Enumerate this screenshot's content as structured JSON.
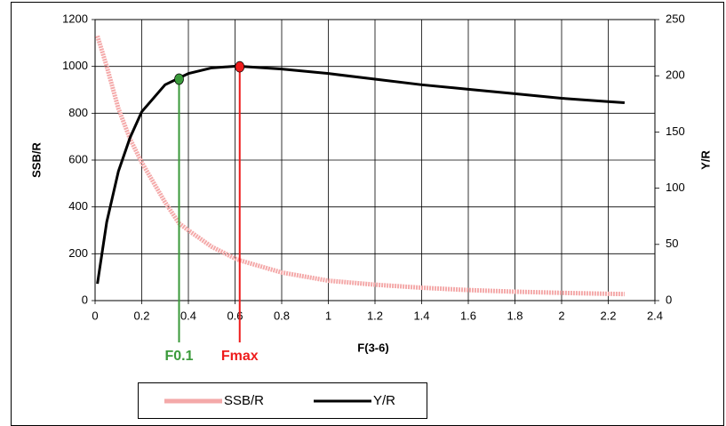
{
  "chart_data": {
    "type": "line",
    "xlabel": "F(3-6)",
    "ylabel": "SSB/R",
    "y2label": "Y/R",
    "xlim": [
      0,
      2.4
    ],
    "xticks": [
      0,
      0.2,
      0.4,
      0.6,
      0.8,
      1,
      1.2,
      1.4,
      1.6,
      1.8,
      2,
      2.2,
      2.4
    ],
    "ylim": [
      0,
      1200
    ],
    "yticks": [
      0,
      200,
      400,
      600,
      800,
      1000,
      1200
    ],
    "y2lim": [
      0,
      250
    ],
    "y2ticks": [
      0,
      50,
      100,
      150,
      200,
      250
    ],
    "grid": true,
    "x": [
      0.01,
      0.05,
      0.1,
      0.15,
      0.2,
      0.3,
      0.36,
      0.4,
      0.5,
      0.6,
      0.62,
      0.8,
      1.0,
      1.2,
      1.4,
      1.6,
      1.8,
      2.0,
      2.2,
      2.27
    ],
    "series": [
      {
        "name": "SSB/R",
        "color": "#f4a9a9",
        "values": [
          1130,
          1000,
          820,
          690,
          590,
          420,
          330,
          300,
          230,
          180,
          172,
          120,
          85,
          68,
          55,
          45,
          38,
          33,
          29,
          28
        ]
      },
      {
        "name": "Y/R",
        "color": "#000000",
        "axis": "y2",
        "values": [
          15,
          70,
          115,
          145,
          168,
          192,
          198,
          202,
          207,
          208.5,
          208.5,
          206,
          202,
          197,
          192,
          188,
          184,
          180,
          177,
          176
        ]
      }
    ],
    "annotations": [
      {
        "label": "F0.1",
        "x": 0.36,
        "y": 197,
        "color": "#3a9a3a"
      },
      {
        "label": "Fmax",
        "x": 0.62,
        "y": 208,
        "color": "#ee1c1c"
      }
    ],
    "legend": "bottom-left"
  }
}
